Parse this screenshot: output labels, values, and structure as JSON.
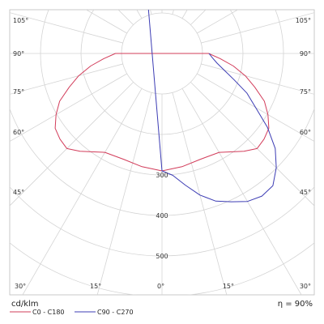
{
  "chart_data": {
    "type": "polar",
    "unit_label": "cd/klm",
    "efficiency_label": "η = 90%",
    "radial_ticks": [
      300,
      400,
      500
    ],
    "radial_max": 600,
    "left_angle_labels": [
      "105°",
      "90°",
      "75°",
      "60°",
      "45°",
      "30°",
      "15°",
      "0°"
    ],
    "right_angle_labels": [
      "105°",
      "90°",
      "75°",
      "60°",
      "45°",
      "30°",
      "15°"
    ],
    "colors": {
      "grid": "#d4d4d4",
      "c0": "#d23c5a",
      "c90": "#3c3cb4"
    },
    "series": [
      {
        "name": "C0 - C180",
        "points": [
          [
            0,
            290
          ],
          [
            10,
            284
          ],
          [
            20,
            278
          ],
          [
            30,
            282
          ],
          [
            40,
            315
          ],
          [
            45,
            332
          ],
          [
            50,
            329
          ],
          [
            55,
            322
          ],
          [
            60,
            302
          ],
          [
            65,
            279
          ],
          [
            70,
            244
          ],
          [
            75,
            213
          ],
          [
            80,
            179
          ],
          [
            85,
            144
          ],
          [
            90,
            115
          ]
        ]
      },
      {
        "name": "C90 - C270",
        "points": [
          [
            -180,
            115
          ],
          [
            -175,
            116
          ],
          [
            -170,
            126
          ],
          [
            -165,
            137
          ],
          [
            0,
            290
          ],
          [
            5,
            302
          ],
          [
            10,
            330
          ],
          [
            15,
            362
          ],
          [
            20,
            388
          ],
          [
            25,
            404
          ],
          [
            30,
            422
          ],
          [
            35,
            430
          ],
          [
            40,
            426
          ],
          [
            45,
            399
          ],
          [
            50,
            365
          ],
          [
            55,
            318
          ],
          [
            60,
            267
          ],
          [
            65,
            231
          ],
          [
            70,
            189
          ],
          [
            75,
            159
          ],
          [
            80,
            138
          ],
          [
            85,
            125
          ],
          [
            90,
            116
          ]
        ]
      }
    ]
  }
}
